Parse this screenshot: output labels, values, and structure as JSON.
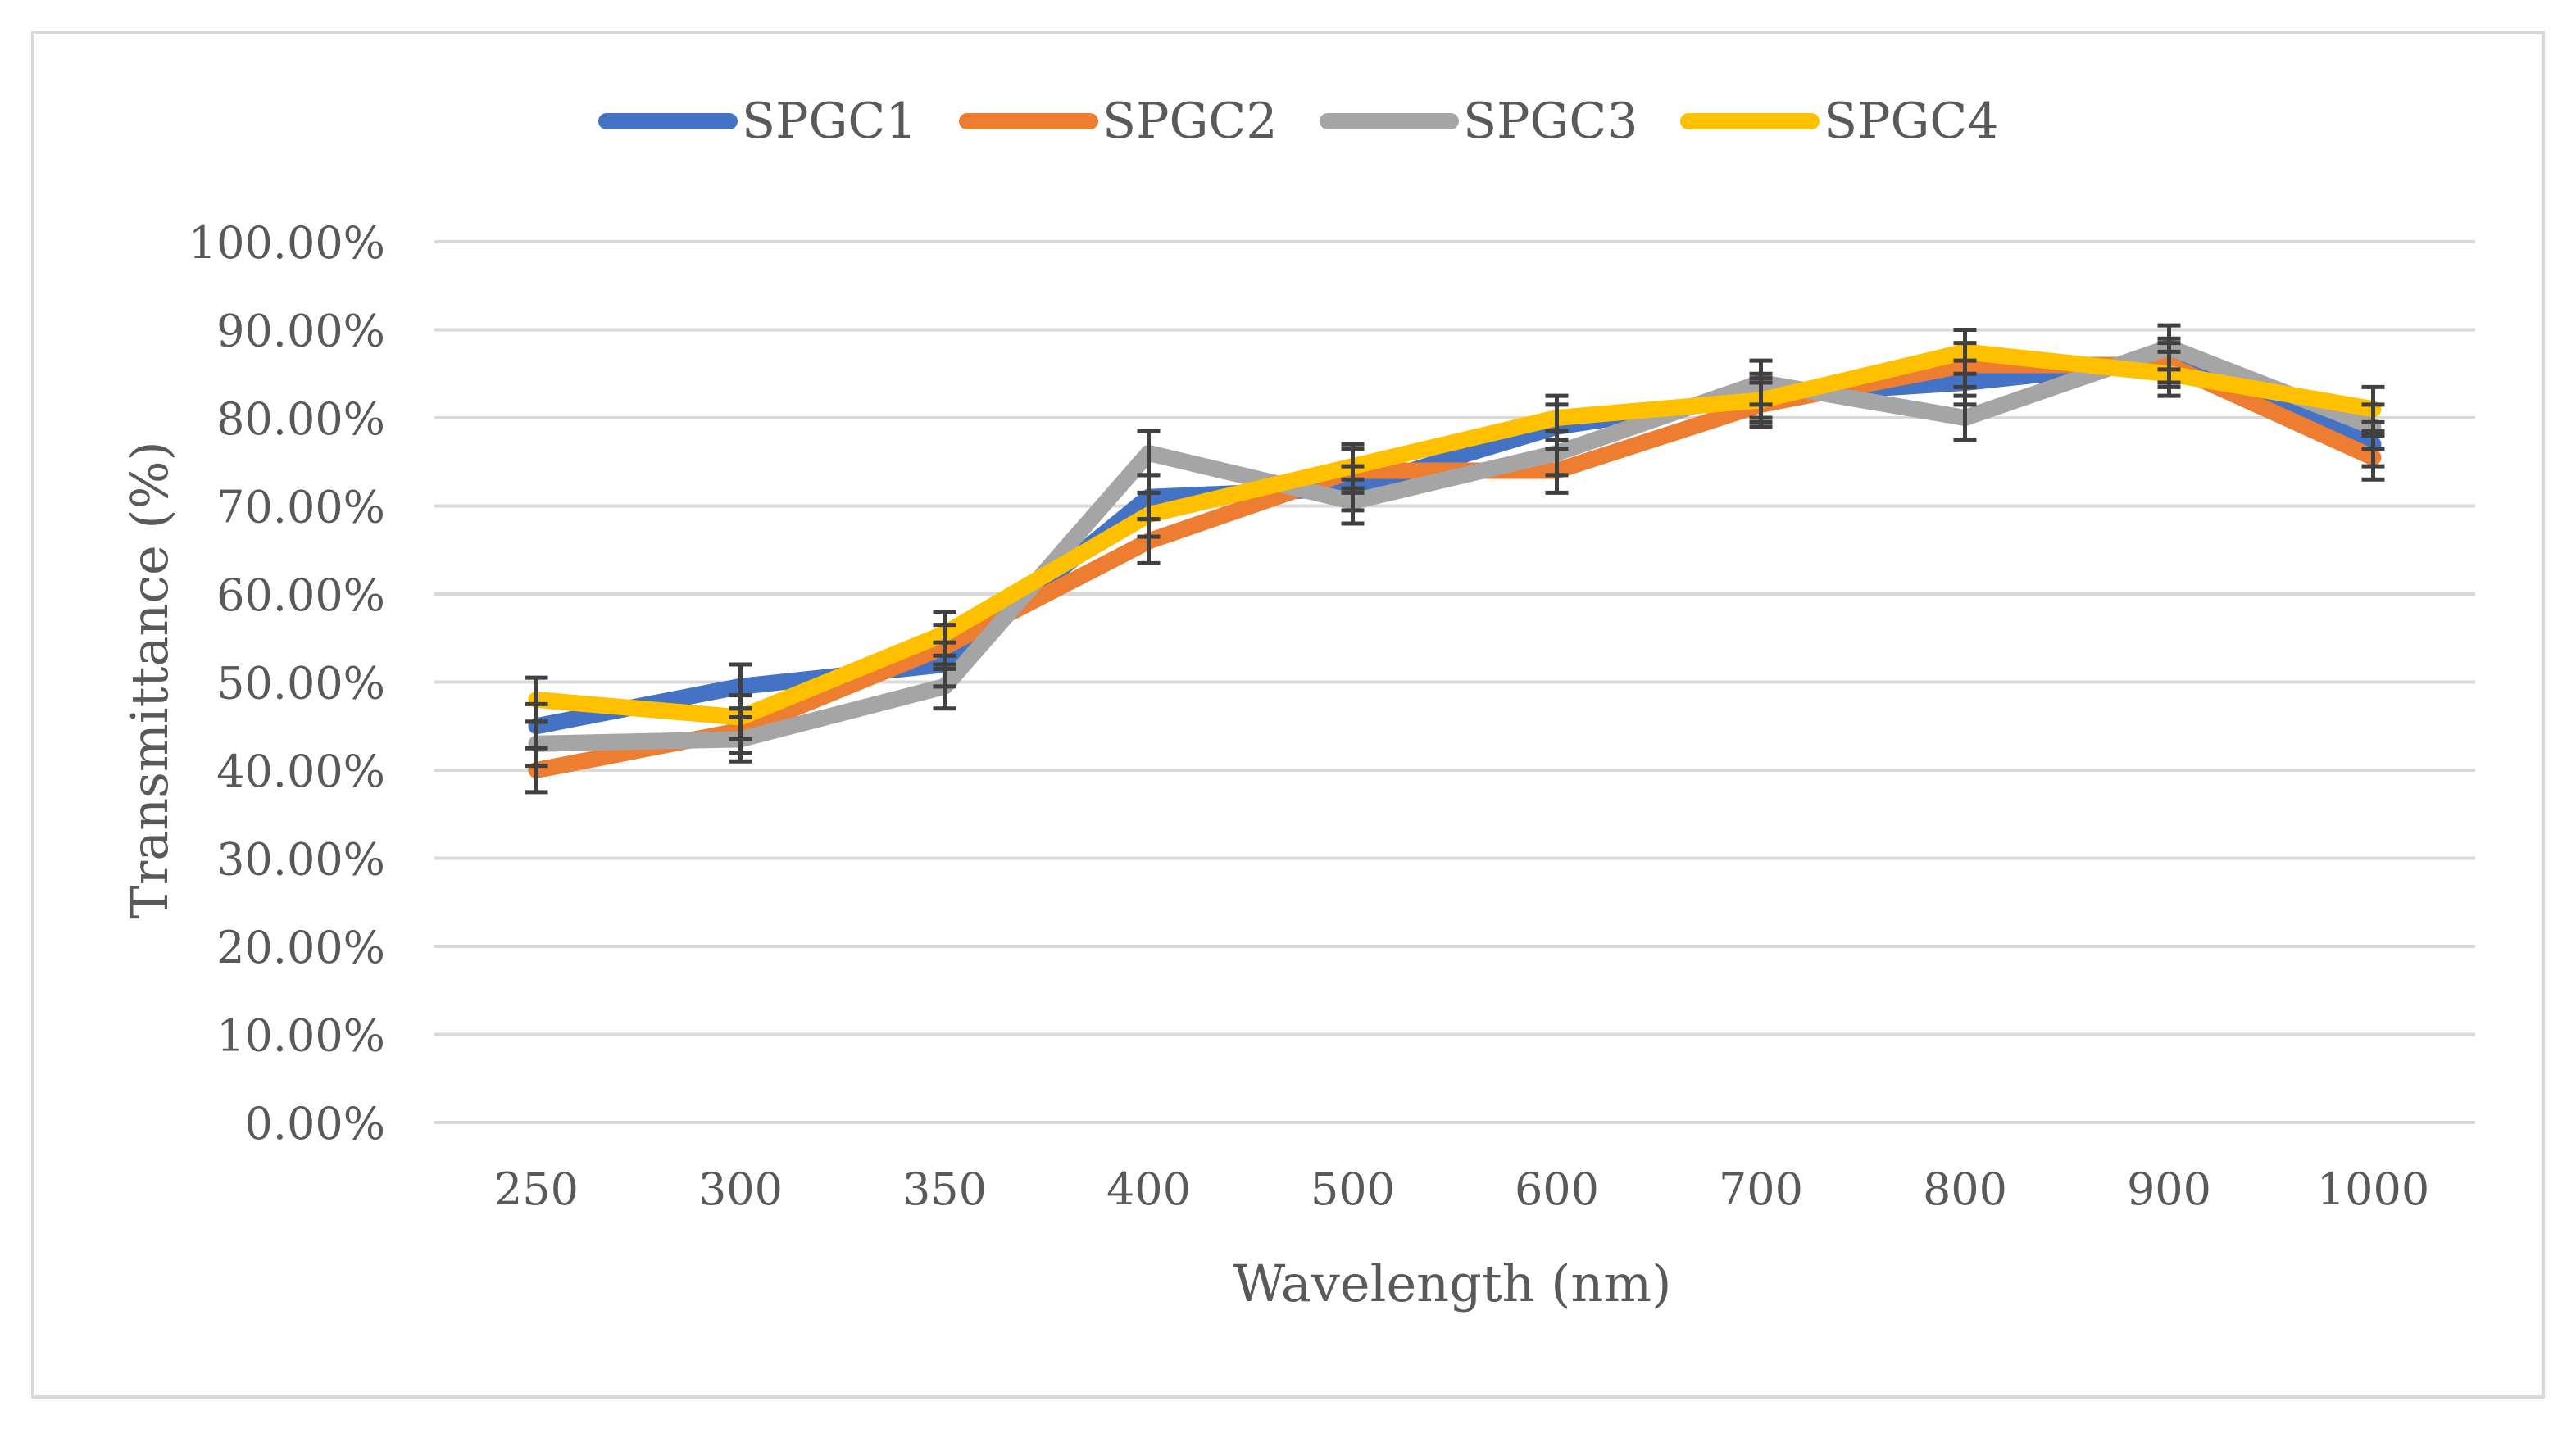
{
  "chart_data": {
    "type": "line",
    "title": "",
    "xlabel": "Wavelength (nm)",
    "ylabel": "Transmittance (%)",
    "categories": [
      "250",
      "300",
      "350",
      "400",
      "500",
      "600",
      "700",
      "800",
      "900",
      "1000"
    ],
    "ylim": [
      0,
      100
    ],
    "yticks": [
      0,
      10,
      20,
      30,
      40,
      50,
      60,
      70,
      80,
      90,
      100
    ],
    "ytick_labels": [
      "0.00%",
      "10.00%",
      "20.00%",
      "30.00%",
      "40.00%",
      "50.00%",
      "60.00%",
      "70.00%",
      "80.00%",
      "90.00%",
      "100.00%"
    ],
    "grid": true,
    "legend_position": "top",
    "error_bar_size": 2.5,
    "series": [
      {
        "name": "SPGC1",
        "color": "#4472C4",
        "values": [
          45,
          49.5,
          52,
          71,
          72,
          79,
          82.5,
          84,
          86.5,
          77
        ]
      },
      {
        "name": "SPGC2",
        "color": "#ED7D31",
        "values": [
          40,
          44.5,
          54,
          66,
          74,
          74,
          81.5,
          86,
          86,
          75.5
        ]
      },
      {
        "name": "SPGC3",
        "color": "#A5A5A5",
        "values": [
          43,
          43.5,
          49.5,
          76,
          70.5,
          76,
          84,
          80,
          88,
          79
        ]
      },
      {
        "name": "SPGC4",
        "color": "#FFC000",
        "values": [
          48,
          46,
          55.5,
          69,
          74.5,
          80,
          82,
          87.5,
          85,
          81
        ]
      }
    ]
  }
}
